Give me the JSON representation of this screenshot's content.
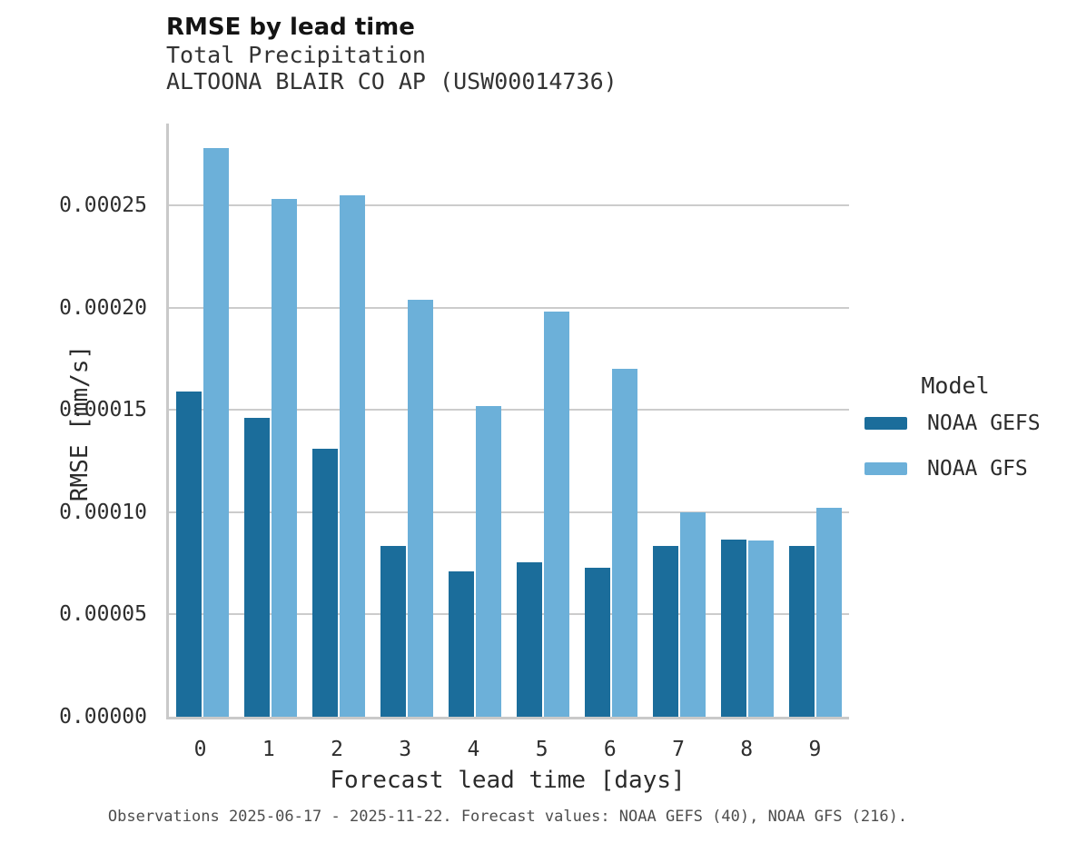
{
  "header": {
    "title": "RMSE by lead time",
    "subtitle_line1": "Total Precipitation",
    "subtitle_line2": "ALTOONA BLAIR CO AP (USW00014736)"
  },
  "chart_data": {
    "type": "bar",
    "title": "RMSE by lead time",
    "subtitle": [
      "Total Precipitation",
      "ALTOONA BLAIR CO AP (USW00014736)"
    ],
    "categories": [
      "0",
      "1",
      "2",
      "3",
      "4",
      "5",
      "6",
      "7",
      "8",
      "9"
    ],
    "series": [
      {
        "name": "NOAA GEFS",
        "color": "#1b6d9b",
        "values": [
          0.000159,
          0.000146,
          0.000131,
          8.35e-05,
          7.12e-05,
          7.55e-05,
          7.27e-05,
          8.35e-05,
          8.66e-05,
          8.34e-05
        ]
      },
      {
        "name": "NOAA GFS",
        "color": "#6cb0d9",
        "values": [
          0.000278,
          0.000253,
          0.000255,
          0.000204,
          0.000152,
          0.000198,
          0.00017,
          0.0001,
          8.61e-05,
          0.000102
        ]
      }
    ],
    "xlabel": "Forecast lead time [days]",
    "ylabel": "RMSE [mm/s]",
    "ylim": [
      0,
      0.00029
    ],
    "yticks": [
      {
        "label": "0.00000",
        "value": 0.0
      },
      {
        "label": "0.00005",
        "value": 5e-05
      },
      {
        "label": "0.00010",
        "value": 0.0001
      },
      {
        "label": "0.00015",
        "value": 0.00015
      },
      {
        "label": "0.00020",
        "value": 0.0002
      },
      {
        "label": "0.00025",
        "value": 0.00025
      }
    ],
    "grid": "horizontal",
    "legend": {
      "title": "Model",
      "position": "right",
      "entries": [
        "NOAA GEFS",
        "NOAA GFS"
      ]
    }
  },
  "footnote": "Observations 2025-06-17 - 2025-11-22. Forecast values: NOAA GEFS (40), NOAA GFS (216).",
  "colors": {
    "gefs": "#1b6d9b",
    "gfs": "#6cb0d9",
    "gridline": "#cccccc",
    "axis": "#c9c9c9",
    "text": "#2b2b2b",
    "footnote": "#4d4d4d"
  }
}
